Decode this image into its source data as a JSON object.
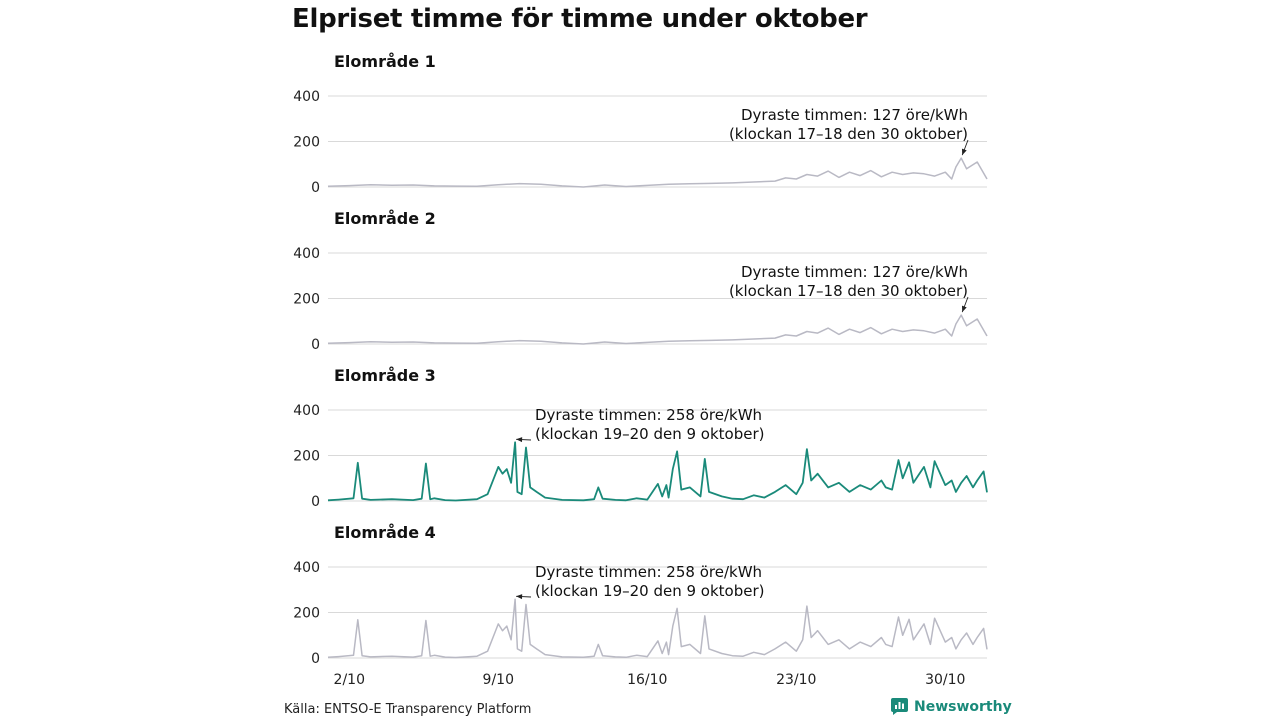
{
  "title": "Elpriset timme för timme under oktober",
  "source": "Källa: ENTSO-E Transparency Platform",
  "brand": {
    "name": "Newsworthy",
    "color": "#1a8a7a"
  },
  "colors": {
    "highlight": "#1a8a7a",
    "muted": "#b9b9c4",
    "grid": "#d9d9d9"
  },
  "chart_data": [
    {
      "type": "line",
      "title": "Elområde 1",
      "highlight": false,
      "ylim": [
        0,
        400
      ],
      "yticks": [
        0,
        200,
        400
      ],
      "xlim": [
        1,
        31.96
      ],
      "xticks": [
        2,
        9,
        16,
        23,
        30
      ],
      "xtick_labels": [
        "2/10",
        "9/10",
        "16/10",
        "23/10",
        "30/10"
      ],
      "annotation": {
        "x": 30.75,
        "y": 127,
        "lines": [
          "Dyraste timmen: 127 öre/kWh",
          "(klockan 17–18 den 30 oktober)"
        ]
      },
      "series": [
        {
          "x": [
            1,
            2,
            3,
            4,
            5,
            6,
            7,
            8,
            9,
            10,
            11,
            12,
            13,
            14,
            15,
            16,
            17,
            18,
            19,
            20,
            21,
            22,
            22.5,
            23,
            23.5,
            24,
            24.5,
            25,
            25.5,
            26,
            26.5,
            27,
            27.5,
            28,
            28.5,
            29,
            29.5,
            30,
            30.3,
            30.5,
            30.75,
            31,
            31.5,
            31.96
          ],
          "y": [
            3,
            6,
            10,
            8,
            9,
            5,
            4,
            3,
            10,
            15,
            12,
            5,
            0,
            9,
            2,
            7,
            12,
            14,
            16,
            18,
            22,
            26,
            40,
            35,
            55,
            48,
            70,
            42,
            65,
            50,
            72,
            45,
            65,
            55,
            62,
            58,
            48,
            65,
            35,
            88,
            127,
            80,
            110,
            35
          ]
        }
      ]
    },
    {
      "type": "line",
      "title": "Elområde 2",
      "highlight": false,
      "ylim": [
        0,
        400
      ],
      "yticks": [
        0,
        200,
        400
      ],
      "xlim": [
        1,
        31.96
      ],
      "xticks": [
        2,
        9,
        16,
        23,
        30
      ],
      "xtick_labels": [
        "2/10",
        "9/10",
        "16/10",
        "23/10",
        "30/10"
      ],
      "annotation": {
        "x": 30.75,
        "y": 127,
        "lines": [
          "Dyraste timmen: 127 öre/kWh",
          "(klockan 17–18 den 30 oktober)"
        ]
      },
      "series": [
        {
          "x": [
            1,
            2,
            3,
            4,
            5,
            6,
            7,
            8,
            9,
            10,
            11,
            12,
            13,
            14,
            15,
            16,
            17,
            18,
            19,
            20,
            21,
            22,
            22.5,
            23,
            23.5,
            24,
            24.5,
            25,
            25.5,
            26,
            26.5,
            27,
            27.5,
            28,
            28.5,
            29,
            29.5,
            30,
            30.3,
            30.5,
            30.75,
            31,
            31.5,
            31.96
          ],
          "y": [
            3,
            6,
            10,
            8,
            9,
            5,
            4,
            3,
            10,
            15,
            12,
            5,
            0,
            9,
            2,
            7,
            12,
            14,
            16,
            18,
            22,
            26,
            40,
            35,
            55,
            48,
            70,
            42,
            65,
            50,
            72,
            45,
            65,
            55,
            62,
            58,
            48,
            65,
            35,
            88,
            127,
            80,
            110,
            35
          ]
        }
      ]
    },
    {
      "type": "line",
      "title": "Elområde 3",
      "highlight": true,
      "ylim": [
        0,
        400
      ],
      "yticks": [
        0,
        200,
        400
      ],
      "xlim": [
        1,
        31.96
      ],
      "xticks": [
        2,
        9,
        16,
        23,
        30
      ],
      "xtick_labels": [
        "2/10",
        "9/10",
        "16/10",
        "23/10",
        "30/10"
      ],
      "annotation": {
        "x": 9.79,
        "y": 258,
        "lines": [
          "Dyraste timmen: 258 öre/kWh",
          "(klockan 19–20 den 9 oktober)"
        ]
      },
      "series": [
        {
          "x": [
            1,
            1.5,
            2.2,
            2.4,
            2.6,
            3,
            4,
            5,
            5.4,
            5.6,
            5.8,
            6,
            6.5,
            7,
            8,
            8.5,
            9,
            9.2,
            9.4,
            9.6,
            9.79,
            9.9,
            10.1,
            10.3,
            10.5,
            10.8,
            11.2,
            12,
            13,
            13.5,
            13.7,
            13.9,
            14.5,
            15,
            15.5,
            16,
            16.5,
            16.7,
            16.9,
            17,
            17.2,
            17.4,
            17.6,
            18,
            18.5,
            18.7,
            18.9,
            19.5,
            20,
            20.5,
            21,
            21.5,
            22,
            22.5,
            23,
            23.3,
            23.5,
            23.7,
            24,
            24.5,
            25,
            25.5,
            26,
            26.5,
            27,
            27.2,
            27.5,
            27.8,
            28,
            28.3,
            28.5,
            29,
            29.3,
            29.5,
            30,
            30.3,
            30.5,
            30.75,
            31,
            31.3,
            31.5,
            31.8,
            31.96
          ],
          "y": [
            3,
            6,
            12,
            168,
            10,
            5,
            8,
            4,
            10,
            165,
            8,
            12,
            4,
            2,
            8,
            30,
            150,
            120,
            140,
            80,
            258,
            40,
            30,
            235,
            60,
            40,
            15,
            5,
            3,
            8,
            60,
            10,
            5,
            3,
            12,
            6,
            75,
            20,
            70,
            15,
            140,
            218,
            50,
            60,
            20,
            185,
            40,
            20,
            10,
            8,
            25,
            15,
            40,
            70,
            30,
            80,
            228,
            90,
            120,
            60,
            80,
            40,
            70,
            50,
            90,
            60,
            50,
            180,
            100,
            170,
            80,
            150,
            60,
            175,
            70,
            90,
            40,
            80,
            110,
            60,
            90,
            130,
            38
          ]
        }
      ]
    },
    {
      "type": "line",
      "title": "Elområde 4",
      "highlight": false,
      "ylim": [
        0,
        400
      ],
      "yticks": [
        0,
        200,
        400
      ],
      "xlim": [
        1,
        31.96
      ],
      "xticks": [
        2,
        9,
        16,
        23,
        30
      ],
      "xtick_labels": [
        "2/10",
        "9/10",
        "16/10",
        "23/10",
        "30/10"
      ],
      "annotation": {
        "x": 9.79,
        "y": 258,
        "lines": [
          "Dyraste timmen: 258 öre/kWh",
          "(klockan 19–20 den 9 oktober)"
        ]
      },
      "series": [
        {
          "x": [
            1,
            1.5,
            2.2,
            2.4,
            2.6,
            3,
            4,
            5,
            5.4,
            5.6,
            5.8,
            6,
            6.5,
            7,
            8,
            8.5,
            9,
            9.2,
            9.4,
            9.6,
            9.79,
            9.9,
            10.1,
            10.3,
            10.5,
            10.8,
            11.2,
            12,
            13,
            13.5,
            13.7,
            13.9,
            14.5,
            15,
            15.5,
            16,
            16.5,
            16.7,
            16.9,
            17,
            17.2,
            17.4,
            17.6,
            18,
            18.5,
            18.7,
            18.9,
            19.5,
            20,
            20.5,
            21,
            21.5,
            22,
            22.5,
            23,
            23.3,
            23.5,
            23.7,
            24,
            24.5,
            25,
            25.5,
            26,
            26.5,
            27,
            27.2,
            27.5,
            27.8,
            28,
            28.3,
            28.5,
            29,
            29.3,
            29.5,
            30,
            30.3,
            30.5,
            30.75,
            31,
            31.3,
            31.5,
            31.8,
            31.96
          ],
          "y": [
            3,
            6,
            12,
            168,
            10,
            5,
            8,
            4,
            10,
            165,
            8,
            12,
            4,
            2,
            8,
            30,
            150,
            120,
            140,
            80,
            258,
            40,
            30,
            235,
            60,
            40,
            15,
            5,
            3,
            8,
            60,
            10,
            5,
            3,
            12,
            6,
            75,
            20,
            70,
            15,
            140,
            218,
            50,
            60,
            20,
            185,
            40,
            20,
            10,
            8,
            25,
            15,
            40,
            70,
            30,
            80,
            228,
            90,
            120,
            60,
            80,
            40,
            70,
            50,
            90,
            60,
            50,
            180,
            100,
            170,
            80,
            150,
            60,
            175,
            70,
            90,
            40,
            80,
            110,
            60,
            90,
            130,
            38
          ]
        }
      ]
    }
  ]
}
